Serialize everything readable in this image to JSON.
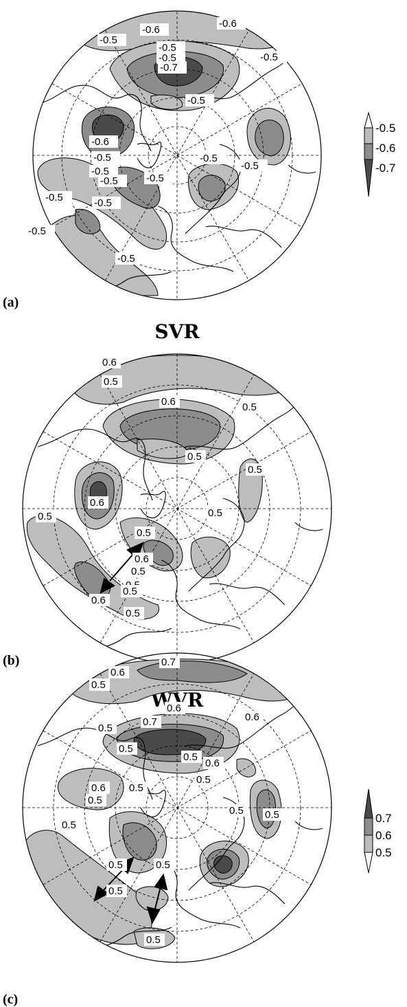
{
  "colors": {
    "level1": "#bdbdbd",
    "level2": "#8c8c8c",
    "level3": "#4a4a4a",
    "land": "#000000",
    "background": "#ffffff"
  },
  "panels": [
    {
      "letter": "(a)",
      "title": "",
      "contour_labels": [
        "-0.6",
        "-0.6",
        "-0.5",
        "-0.5",
        "-0.5",
        "-0.5",
        "-0.7",
        "-0.5",
        "-0.6",
        "-0.5",
        "-0.5",
        "-0.5",
        "-0.5",
        "-0.5",
        "-0.5",
        "-0.5",
        "-0.5",
        "-0.5",
        "-0.5"
      ],
      "legend": {
        "labels": [
          "-0.5",
          "-0.6",
          "-0.7"
        ]
      }
    },
    {
      "letter": "(b)",
      "title": "SVR",
      "contour_labels": [
        "0.6",
        "0.5",
        "0.6",
        "0.5",
        "0.5",
        "0.5",
        "0.5",
        "0.6",
        "0.5",
        "0.5",
        "0.6",
        "0.5",
        "0.5",
        "0.6",
        "0.5",
        "0.5"
      ],
      "legend": null
    },
    {
      "letter": "(c)",
      "title": "WVR",
      "contour_labels": [
        "0.7",
        "0.6",
        "0.5",
        "0.6",
        "0.7",
        "0.5",
        "0.6",
        "0.6",
        "0.5",
        "0.5",
        "0.5",
        "0.6",
        "0.5",
        "0.5",
        "0.5",
        "0.5",
        "0.5",
        "0.5",
        "0.5",
        "0.5",
        "0.5"
      ],
      "legend": {
        "labels": [
          "0.7",
          "0.6",
          "0.5"
        ]
      }
    }
  ]
}
